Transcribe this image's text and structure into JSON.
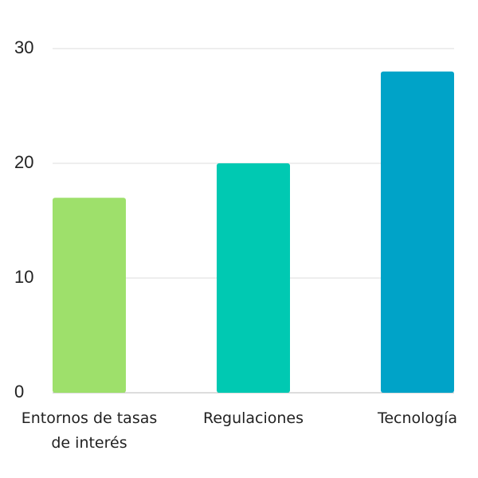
{
  "chart_data": {
    "type": "bar",
    "categories": [
      "Entornos de tasas de interés",
      "Regulaciones",
      "Tecnología"
    ],
    "values": [
      17,
      20,
      28
    ],
    "colors": [
      "#9ee06b",
      "#00c9b2",
      "#00a3c8"
    ],
    "ylim": [
      0,
      30
    ],
    "yticks": [
      0,
      10,
      20,
      30
    ],
    "grid": true
  }
}
